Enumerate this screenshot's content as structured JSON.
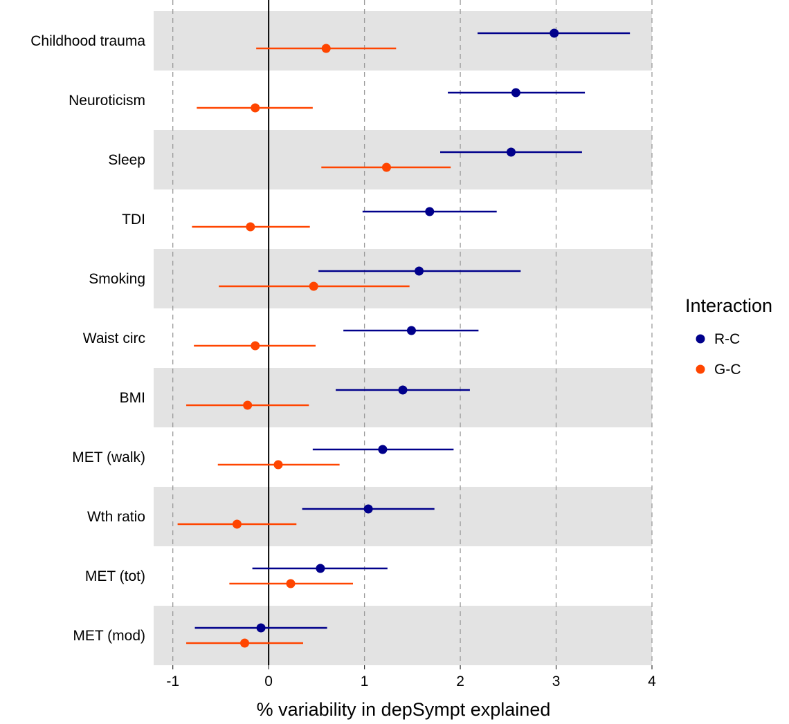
{
  "chart_data": {
    "type": "forest",
    "xlabel": "% variability in depSympt explained",
    "xlim": [
      -1.2,
      4.0
    ],
    "xticks": [
      -1,
      0,
      1,
      2,
      3,
      4
    ],
    "xtick_labels": [
      "-1",
      "0",
      "1",
      "2",
      "3",
      "4"
    ],
    "grid": "vertical dashed at major ticks",
    "reference_line": 0,
    "legend": {
      "title": "Interaction",
      "placement": "right",
      "entries": [
        {
          "label": "R-C",
          "color": "#00008B"
        },
        {
          "label": "G-C",
          "color": "#FF4500"
        }
      ]
    },
    "categories": [
      "Childhood trauma",
      "Neuroticism",
      "Sleep",
      "TDI",
      "Smoking",
      "Waist circ",
      "BMI",
      "MET (walk)",
      "Wth ratio",
      "MET (tot)",
      "MET (mod)"
    ],
    "series": [
      {
        "name": "R-C",
        "color": "#00008B",
        "estimate": [
          2.98,
          2.58,
          2.53,
          1.68,
          1.57,
          1.49,
          1.4,
          1.19,
          1.04,
          0.54,
          -0.08
        ],
        "lower": [
          2.18,
          1.87,
          1.79,
          0.98,
          0.52,
          0.78,
          0.7,
          0.46,
          0.35,
          -0.17,
          -0.77
        ],
        "upper": [
          3.77,
          3.3,
          3.27,
          2.38,
          2.63,
          2.19,
          2.1,
          1.93,
          1.73,
          1.24,
          0.61
        ]
      },
      {
        "name": "G-C",
        "color": "#FF4500",
        "estimate": [
          0.6,
          -0.14,
          1.23,
          -0.19,
          0.47,
          -0.14,
          -0.22,
          0.1,
          -0.33,
          0.23,
          -0.25
        ],
        "lower": [
          -0.13,
          -0.75,
          0.55,
          -0.8,
          -0.52,
          -0.78,
          -0.86,
          -0.53,
          -0.95,
          -0.41,
          -0.86
        ],
        "upper": [
          1.33,
          0.46,
          1.9,
          0.43,
          1.47,
          0.49,
          0.42,
          0.74,
          0.29,
          0.88,
          0.36
        ]
      }
    ]
  }
}
